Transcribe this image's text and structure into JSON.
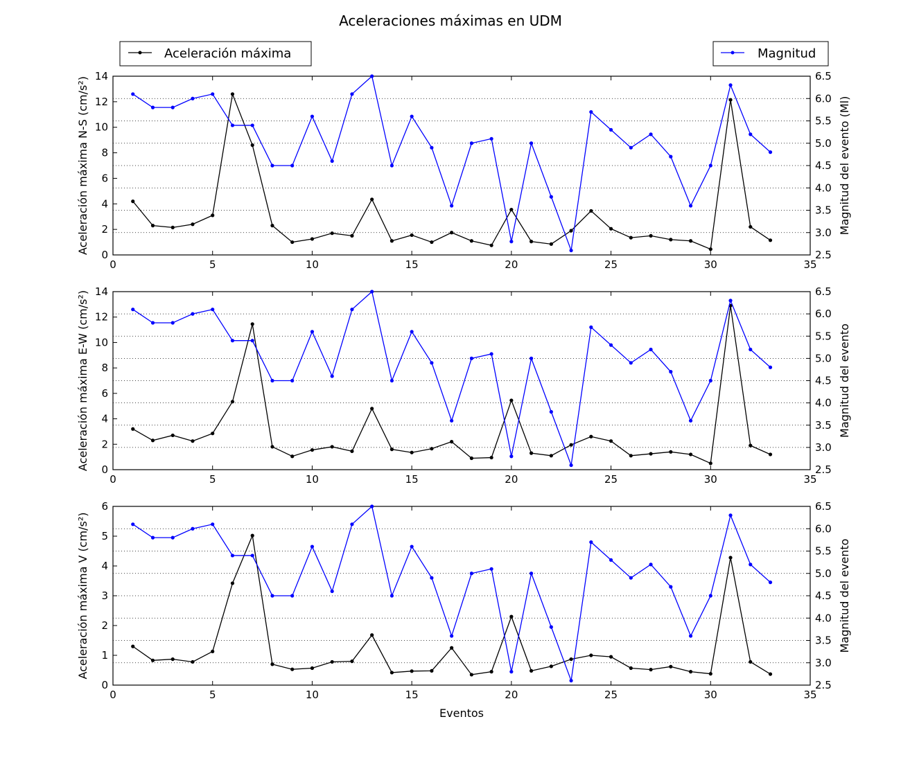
{
  "figure": {
    "title": "Aceleraciones máximas en UDM",
    "xlabel": "Eventos",
    "legend_left": "Aceleración máxima",
    "legend_right": "Magnitud"
  },
  "colors": {
    "acceleration": "#000000",
    "magnitude": "#0000ff"
  },
  "chart_data": [
    {
      "type": "line",
      "xlim": [
        0,
        35
      ],
      "x_ticks": [
        0,
        5,
        10,
        15,
        20,
        25,
        30,
        35
      ],
      "ylabel": "Aceleración máxima N-S (cm/s²)",
      "ylim": [
        0,
        14
      ],
      "y_ticks": [
        0,
        2,
        4,
        6,
        8,
        10,
        12,
        14
      ],
      "y2label": "Magnitud del evento (Ml)",
      "y2lim": [
        2.5,
        6.5
      ],
      "y2_ticks": [
        2.5,
        3.0,
        3.5,
        4.0,
        4.5,
        5.0,
        5.5,
        6.0,
        6.5
      ],
      "grid": "horizontal-dotted",
      "x": [
        1,
        2,
        3,
        4,
        5,
        6,
        7,
        8,
        9,
        10,
        11,
        12,
        13,
        14,
        15,
        16,
        17,
        18,
        19,
        20,
        21,
        22,
        23,
        24,
        25,
        26,
        27,
        28,
        29,
        30,
        31,
        32,
        33
      ],
      "series": [
        {
          "name": "Aceleración máxima",
          "axis": "left",
          "values": [
            4.2,
            2.3,
            2.15,
            2.4,
            3.1,
            12.6,
            8.6,
            2.3,
            1.0,
            1.25,
            1.7,
            1.5,
            4.35,
            1.1,
            1.55,
            1.0,
            1.75,
            1.1,
            0.75,
            3.55,
            1.05,
            0.85,
            1.9,
            3.45,
            2.05,
            1.35,
            1.5,
            1.2,
            1.1,
            0.45,
            12.15,
            2.2,
            1.15
          ]
        },
        {
          "name": "Magnitud",
          "axis": "right",
          "values": [
            6.1,
            5.8,
            5.8,
            6.0,
            6.1,
            5.4,
            5.4,
            4.5,
            4.5,
            5.6,
            4.6,
            6.1,
            6.5,
            4.5,
            5.6,
            4.9,
            3.6,
            5.0,
            5.1,
            2.8,
            5.0,
            3.8,
            2.6,
            5.7,
            5.3,
            4.9,
            5.2,
            4.7,
            3.6,
            4.5,
            6.3,
            5.2,
            4.8
          ]
        }
      ]
    },
    {
      "type": "line",
      "xlim": [
        0,
        35
      ],
      "x_ticks": [
        0,
        5,
        10,
        15,
        20,
        25,
        30,
        35
      ],
      "ylabel": "Aceleración máxima E-W (cm/s²)",
      "ylim": [
        0,
        14
      ],
      "y_ticks": [
        0,
        2,
        4,
        6,
        8,
        10,
        12,
        14
      ],
      "y2label": "Magnitud del evento",
      "y2lim": [
        2.5,
        6.5
      ],
      "y2_ticks": [
        2.5,
        3.0,
        3.5,
        4.0,
        4.5,
        5.0,
        5.5,
        6.0,
        6.5
      ],
      "grid": "horizontal-dotted",
      "x": [
        1,
        2,
        3,
        4,
        5,
        6,
        7,
        8,
        9,
        10,
        11,
        12,
        13,
        14,
        15,
        16,
        17,
        18,
        19,
        20,
        21,
        22,
        23,
        24,
        25,
        26,
        27,
        28,
        29,
        30,
        31,
        32,
        33
      ],
      "series": [
        {
          "name": "Aceleración máxima",
          "axis": "left",
          "values": [
            3.2,
            2.3,
            2.7,
            2.25,
            2.85,
            5.35,
            11.45,
            1.8,
            1.05,
            1.55,
            1.8,
            1.45,
            4.8,
            1.6,
            1.35,
            1.65,
            2.2,
            0.9,
            0.95,
            5.45,
            1.3,
            1.1,
            1.95,
            2.6,
            2.25,
            1.1,
            1.25,
            1.4,
            1.2,
            0.5,
            12.9,
            1.9,
            1.2
          ]
        },
        {
          "name": "Magnitud",
          "axis": "right",
          "values": [
            6.1,
            5.8,
            5.8,
            6.0,
            6.1,
            5.4,
            5.4,
            4.5,
            4.5,
            5.6,
            4.6,
            6.1,
            6.5,
            4.5,
            5.6,
            4.9,
            3.6,
            5.0,
            5.1,
            2.8,
            5.0,
            3.8,
            2.6,
            5.7,
            5.3,
            4.9,
            5.2,
            4.7,
            3.6,
            4.5,
            6.3,
            5.2,
            4.8
          ]
        }
      ]
    },
    {
      "type": "line",
      "xlim": [
        0,
        35
      ],
      "x_ticks": [
        0,
        5,
        10,
        15,
        20,
        25,
        30,
        35
      ],
      "ylabel": "Aceleración máxima V (cm/s²)",
      "ylim": [
        0,
        6
      ],
      "y_ticks": [
        0,
        1,
        2,
        3,
        4,
        5,
        6
      ],
      "y2label": "Magnitud del evento",
      "y2lim": [
        2.5,
        6.5
      ],
      "y2_ticks": [
        2.5,
        3.0,
        3.5,
        4.0,
        4.5,
        5.0,
        5.5,
        6.0,
        6.5
      ],
      "grid": "horizontal-dotted",
      "x": [
        1,
        2,
        3,
        4,
        5,
        6,
        7,
        8,
        9,
        10,
        11,
        12,
        13,
        14,
        15,
        16,
        17,
        18,
        19,
        20,
        21,
        22,
        23,
        24,
        25,
        26,
        27,
        28,
        29,
        30,
        31,
        32,
        33
      ],
      "series": [
        {
          "name": "Aceleración máxima",
          "axis": "left",
          "values": [
            1.3,
            0.83,
            0.87,
            0.78,
            1.13,
            3.42,
            5.02,
            0.7,
            0.53,
            0.57,
            0.78,
            0.8,
            1.68,
            0.42,
            0.47,
            0.48,
            1.25,
            0.35,
            0.45,
            2.3,
            0.48,
            0.63,
            0.87,
            1.0,
            0.95,
            0.57,
            0.52,
            0.62,
            0.45,
            0.38,
            4.28,
            0.78,
            0.37
          ]
        },
        {
          "name": "Magnitud",
          "axis": "right",
          "values": [
            6.1,
            5.8,
            5.8,
            6.0,
            6.1,
            5.4,
            5.4,
            4.5,
            4.5,
            5.6,
            4.6,
            6.1,
            6.5,
            4.5,
            5.6,
            4.9,
            3.6,
            5.0,
            5.1,
            2.8,
            5.0,
            3.8,
            2.6,
            5.7,
            5.3,
            4.9,
            5.2,
            4.7,
            3.6,
            4.5,
            6.3,
            5.2,
            4.8
          ]
        }
      ]
    }
  ]
}
